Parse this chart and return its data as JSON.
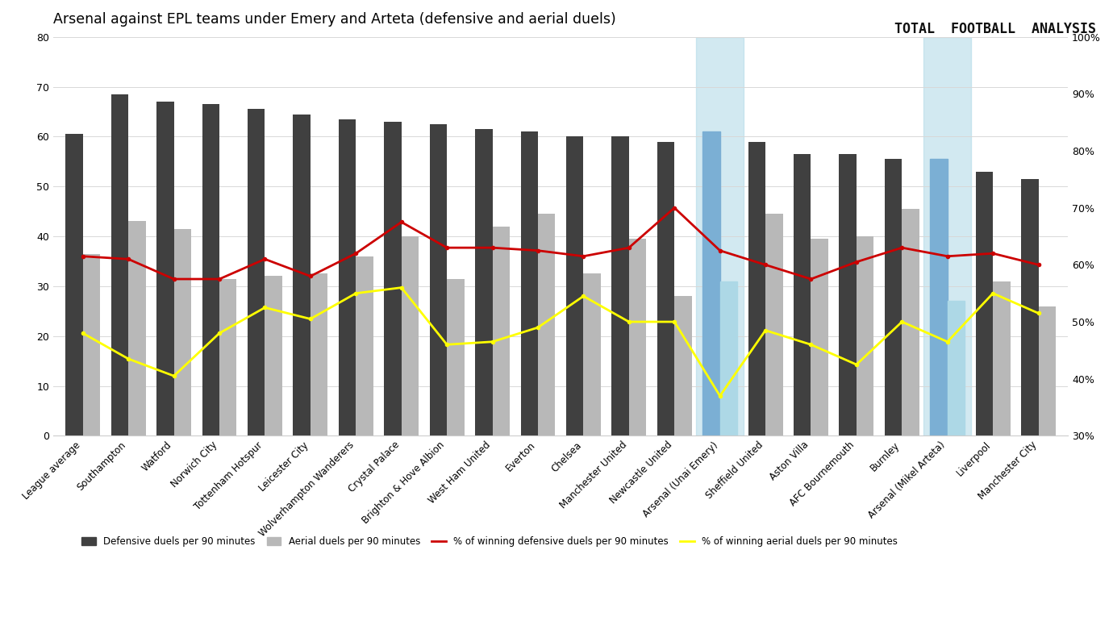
{
  "title": "Arsenal against EPL teams under Emery and Arteta (defensive and aerial duels)",
  "categories": [
    "League average",
    "Southampton",
    "Watford",
    "Norwich City",
    "Tottenham Hotspur",
    "Leicester City",
    "Wolverhampton Wanderers",
    "Crystal Palace",
    "Brighton & Hove Albion",
    "West Ham United",
    "Everton",
    "Chelsea",
    "Manchester United",
    "Newcastle United",
    "Arsenal (Unai Emery)",
    "Sheffield United",
    "Aston Villa",
    "AFC Bournemouth",
    "Burnley",
    "Arsenal (Mikel Arteta)",
    "Liverpool",
    "Manchester City"
  ],
  "defensive_duels": [
    60.5,
    68.5,
    67.0,
    66.5,
    65.5,
    64.5,
    63.5,
    63.0,
    62.5,
    61.5,
    61.0,
    60.0,
    60.0,
    59.0,
    61.0,
    59.0,
    56.5,
    56.5,
    55.5,
    55.5,
    53.0,
    51.5
  ],
  "aerial_duels": [
    36.5,
    43.0,
    41.5,
    31.5,
    32.0,
    32.5,
    36.0,
    40.0,
    31.5,
    42.0,
    44.5,
    32.5,
    39.5,
    28.0,
    31.0,
    44.5,
    39.5,
    40.0,
    45.5,
    27.0,
    31.0,
    26.0
  ],
  "pct_defensive": [
    61.5,
    61.0,
    57.5,
    57.5,
    61.0,
    58.0,
    62.0,
    67.5,
    63.0,
    63.0,
    62.5,
    61.5,
    63.0,
    70.0,
    62.5,
    60.0,
    57.5,
    60.5,
    63.0,
    61.5,
    62.0,
    60.0
  ],
  "pct_aerial": [
    48.0,
    43.5,
    40.5,
    48.0,
    52.5,
    50.5,
    55.0,
    56.0,
    46.0,
    46.5,
    49.0,
    54.5,
    50.0,
    50.0,
    37.0,
    48.5,
    46.0,
    42.5,
    50.0,
    46.5,
    55.0,
    51.5
  ],
  "highlighted": [
    14,
    19
  ],
  "highlight_color": "#add8e6",
  "dark_bar_color": "#404040",
  "light_bar_color": "#b8b8b8",
  "red_line_color": "#cc0000",
  "yellow_line_color": "#ffff00",
  "background_color": "#ffffff",
  "ylim_left": [
    0,
    80
  ],
  "ylim_right": [
    30,
    100
  ],
  "yticks_left": [
    0,
    10,
    20,
    30,
    40,
    50,
    60,
    70,
    80
  ],
  "yticks_right_vals": [
    30,
    40,
    50,
    60,
    70,
    80,
    90,
    100
  ],
  "yticks_right_labels": [
    "30%",
    "40%",
    "50%",
    "60%",
    "70%",
    "80%",
    "90%",
    "100%"
  ],
  "logo_text": "TOTAL  FOOTBALL  ANALYSIS",
  "legend_items": [
    {
      "label": "Defensive duels per 90 minutes",
      "color": "#404040",
      "type": "bar"
    },
    {
      "label": "Aerial duels per 90 minutes",
      "color": "#b8b8b8",
      "type": "bar"
    },
    {
      "label": "% of winning defensive duels per 90 minutes",
      "color": "#cc0000",
      "type": "line"
    },
    {
      "label": "% of winning aerial duels per 90 minutes",
      "color": "#ffff00",
      "type": "line"
    }
  ]
}
